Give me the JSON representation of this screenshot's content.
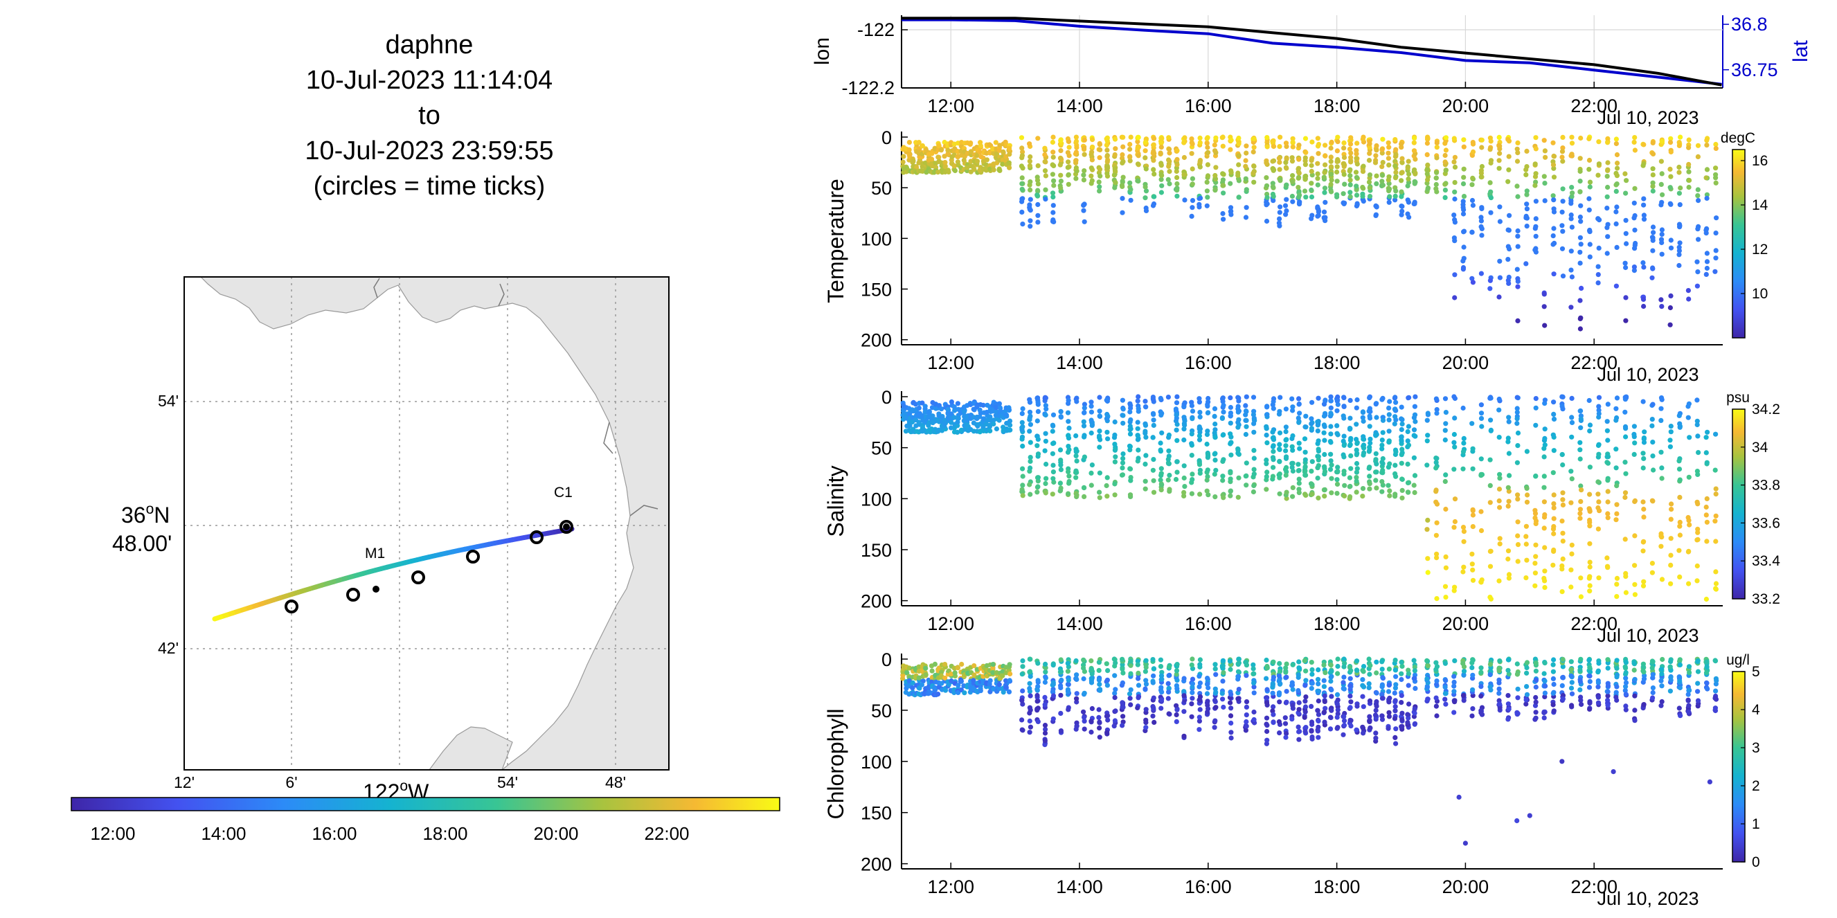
{
  "header": {
    "glider": "daphne",
    "start": "10-Jul-2023 11:14:04",
    "to": "to",
    "end": "10-Jul-2023 23:59:55",
    "note": "(circles = time ticks)"
  },
  "time_ticks": [
    "12:00",
    "14:00",
    "16:00",
    "18:00",
    "20:00",
    "22:00"
  ],
  "date_label": "Jul 10, 2023",
  "colors": {
    "track_start": "#3e26a8",
    "track_end": "#f9fb15",
    "lon_line": "#000000",
    "lat_line": "#0000cc"
  },
  "chart_data": [
    {
      "type": "line",
      "name": "position",
      "ylabel": "lon",
      "ylabel_right": "lat",
      "x": [
        "11:14",
        "12:00",
        "13:00",
        "14:00",
        "15:00",
        "16:00",
        "17:00",
        "18:00",
        "19:00",
        "20:00",
        "21:00",
        "22:00",
        "23:00",
        "23:59"
      ],
      "series": [
        {
          "name": "lon",
          "values": [
            -121.96,
            -121.96,
            -121.96,
            -121.97,
            -121.98,
            -121.99,
            -122.01,
            -122.03,
            -122.06,
            -122.08,
            -122.1,
            -122.12,
            -122.15,
            -122.19
          ]
        },
        {
          "name": "lat",
          "values": [
            36.805,
            36.805,
            36.804,
            36.799,
            36.794,
            36.788,
            36.781,
            36.774,
            36.768,
            36.762,
            36.756,
            36.75,
            36.743,
            36.734
          ]
        }
      ],
      "yticks": [
        "-122",
        "-122.2"
      ],
      "yticks_right": [
        "36.8",
        "36.75"
      ],
      "ylim": [
        -122.2,
        -121.95
      ],
      "ylim_right": [
        36.73,
        36.81
      ]
    },
    {
      "type": "scatter",
      "name": "temperature",
      "ylabel": "Temperature",
      "colorbar_unit": "degC",
      "colorbar_ticks": [
        "16",
        "14",
        "12",
        "10"
      ],
      "clim": [
        8,
        16.5
      ],
      "yticks": [
        "0",
        "50",
        "100",
        "150",
        "200"
      ],
      "ylim": [
        0,
        205
      ],
      "y_reversed": true
    },
    {
      "type": "scatter",
      "name": "salinity",
      "ylabel": "Salinity",
      "colorbar_unit": "psu",
      "colorbar_ticks": [
        "34.2",
        "34",
        "33.8",
        "33.6",
        "33.4",
        "33.2"
      ],
      "clim": [
        33.2,
        34.2
      ],
      "yticks": [
        "0",
        "50",
        "100",
        "150",
        "200"
      ],
      "ylim": [
        0,
        205
      ],
      "y_reversed": true
    },
    {
      "type": "scatter",
      "name": "chlorophyll",
      "ylabel": "Chlorophyll",
      "colorbar_unit": "ug/l",
      "colorbar_ticks": [
        "5",
        "4",
        "3",
        "2",
        "1",
        "0"
      ],
      "clim": [
        0,
        5
      ],
      "yticks": [
        "0",
        "50",
        "100",
        "150",
        "200"
      ],
      "ylim": [
        0,
        205
      ],
      "y_reversed": true
    }
  ],
  "map": {
    "lat_ticks": [
      "54'",
      "42'"
    ],
    "lat_mid_deg": "36",
    "lat_mid_sup": "o",
    "lat_mid_hem": "N",
    "lat_mid_min": "48.00'",
    "lon_ticks": [
      "12'",
      "6'",
      "54'",
      "48'"
    ],
    "lon_mid_deg": "122",
    "lon_mid_sup": "o",
    "lon_mid_hem": "W",
    "stations": [
      "M1",
      "C1"
    ]
  },
  "track_colorbar_ticks": [
    "12:00",
    "14:00",
    "16:00",
    "18:00",
    "20:00",
    "22:00"
  ]
}
